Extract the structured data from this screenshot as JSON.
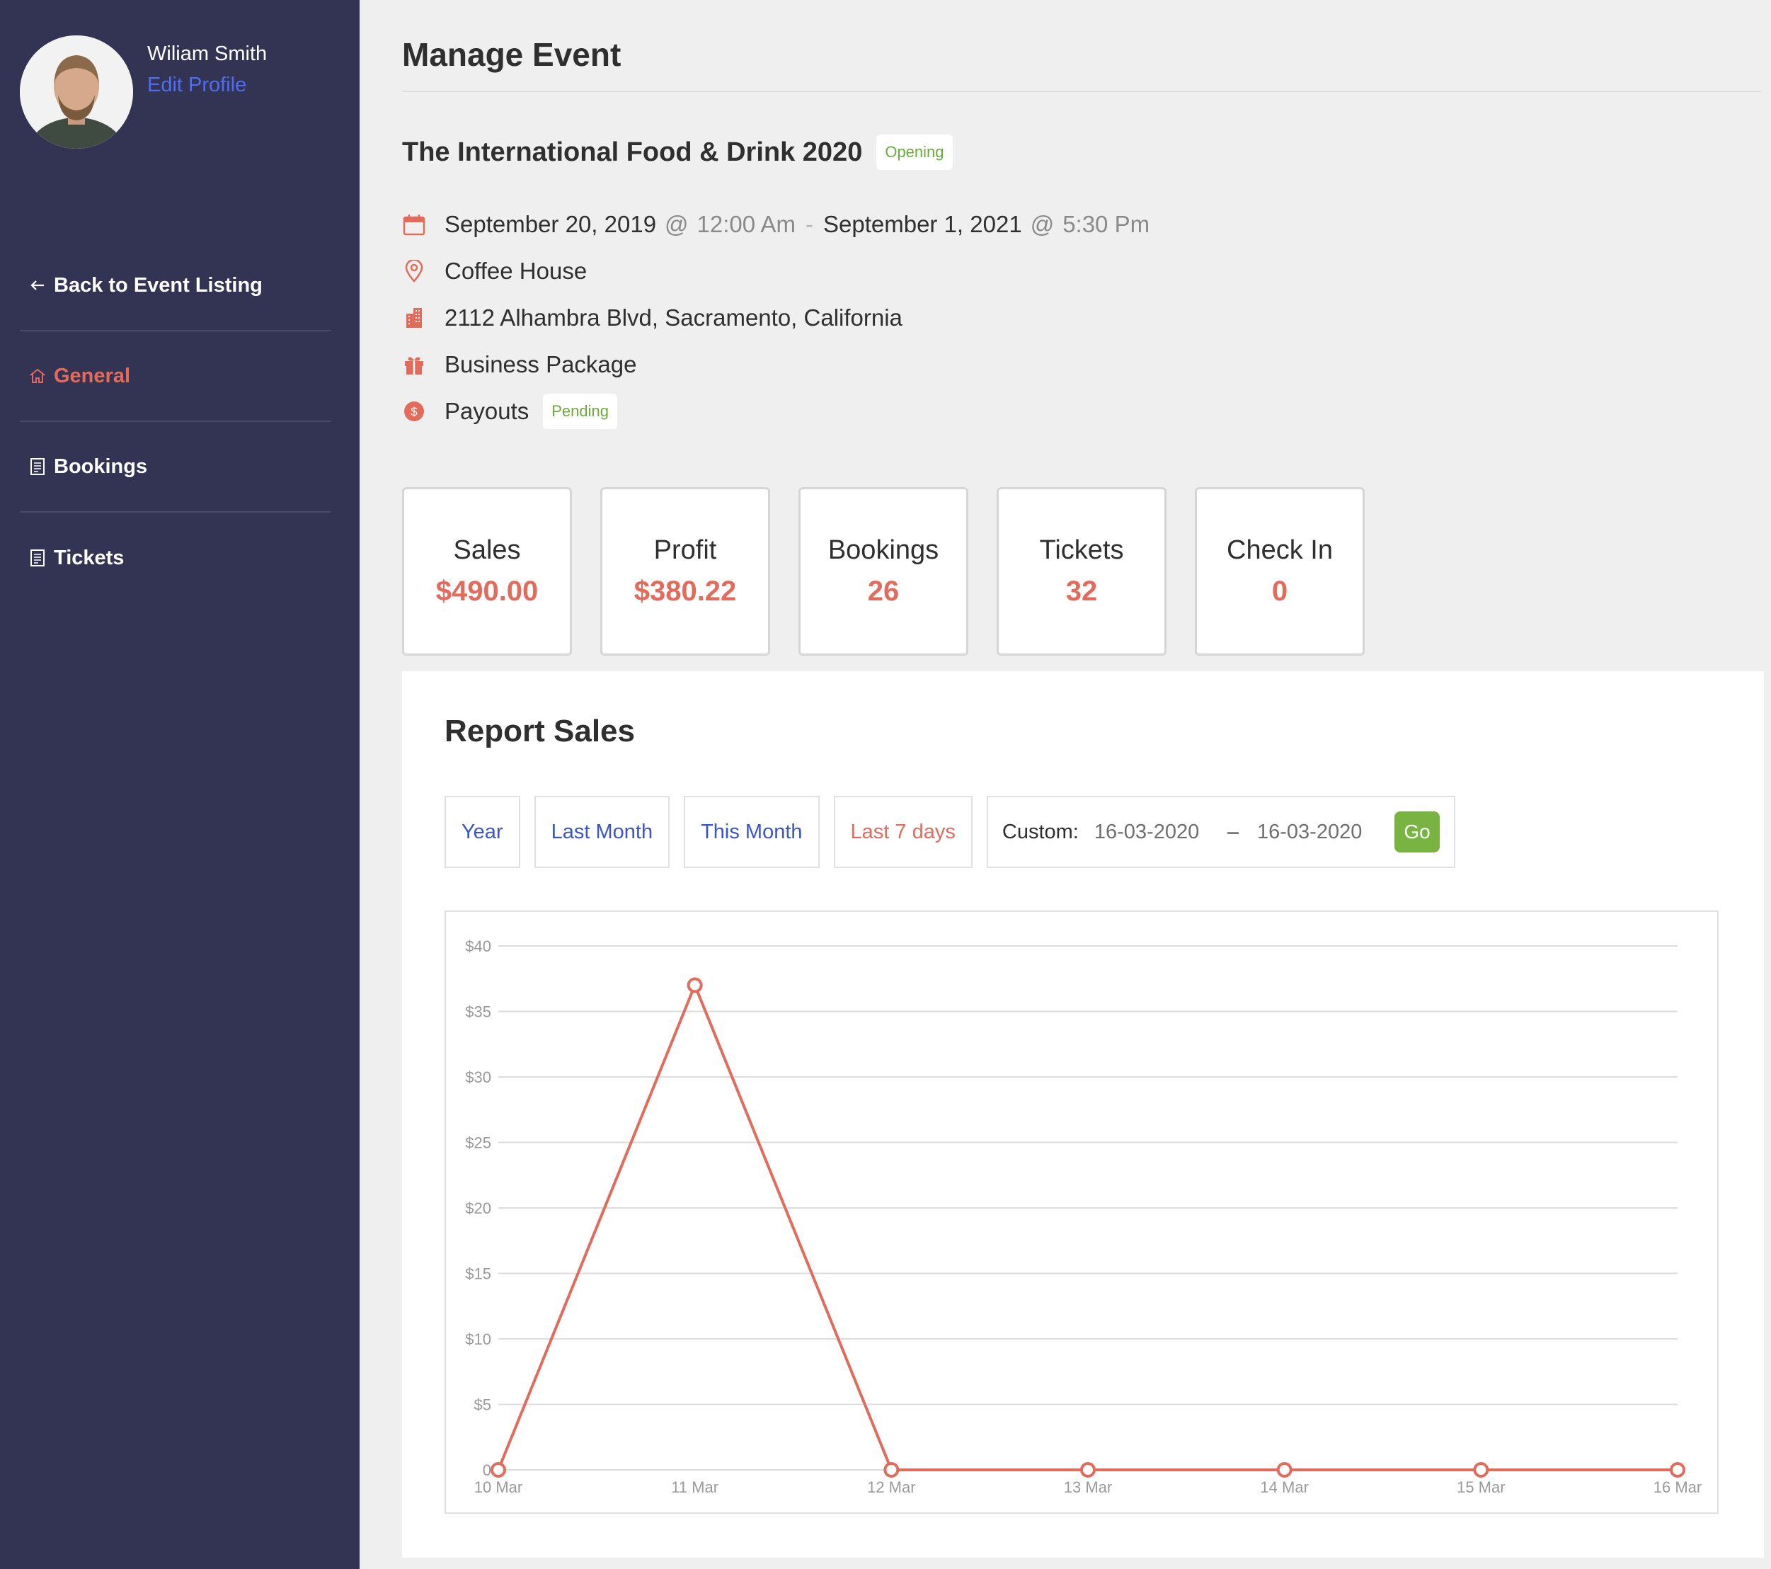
{
  "profile": {
    "name": "Wiliam Smith",
    "edit_label": "Edit Profile"
  },
  "sidebar": {
    "back_label": "Back to Event Listing",
    "items": [
      {
        "label": "General",
        "icon": "home-icon",
        "active": true
      },
      {
        "label": "Bookings",
        "icon": "document-icon",
        "active": false
      },
      {
        "label": "Tickets",
        "icon": "document-icon",
        "active": false
      }
    ]
  },
  "page": {
    "title": "Manage Event"
  },
  "event": {
    "title": "The International Food & Drink 2020",
    "status": "Opening",
    "start_date": "September 20, 2019",
    "start_time": "12:00 Am",
    "end_date": "September 1, 2021",
    "end_time": "5:30 Pm",
    "at_symbol": "@",
    "range_sep": "-",
    "venue": "Coffee House",
    "address": "2112 Alhambra Blvd, Sacramento, California",
    "package": "Business Package",
    "payouts_label": "Payouts",
    "payouts_status": "Pending"
  },
  "stats": [
    {
      "label": "Sales",
      "value": "$490.00"
    },
    {
      "label": "Profit",
      "value": "$380.22"
    },
    {
      "label": "Bookings",
      "value": "26"
    },
    {
      "label": "Tickets",
      "value": "32"
    },
    {
      "label": "Check In",
      "value": "0"
    }
  ],
  "report": {
    "title": "Report Sales",
    "filters": [
      {
        "label": "Year",
        "active": false
      },
      {
        "label": "Last Month",
        "active": false
      },
      {
        "label": "This Month",
        "active": false
      },
      {
        "label": "Last 7 days",
        "active": true
      }
    ],
    "custom_label": "Custom:",
    "date_from": "16-03-2020",
    "date_to": "16-03-2020",
    "date_sep": "–",
    "go_label": "Go"
  },
  "colors": {
    "accent": "#e26b5b",
    "sidebar_bg": "#333453",
    "link_blue": "#3b55c9",
    "success_green": "#79b443",
    "badge_green": "#6aab3c"
  },
  "chart_data": {
    "type": "line",
    "title": "",
    "xlabel": "",
    "ylabel": "",
    "categories": [
      "10 Mar",
      "11 Mar",
      "12 Mar",
      "13 Mar",
      "14 Mar",
      "15 Mar",
      "16 Mar"
    ],
    "series": [
      {
        "values": [
          0,
          37,
          0,
          0,
          0,
          0,
          0
        ]
      }
    ],
    "y_ticks": [
      "0",
      "$5",
      "$10",
      "$15",
      "$20",
      "$25",
      "$30",
      "$35",
      "$40"
    ],
    "ylim": [
      0,
      40
    ],
    "grid": true,
    "legend": "none"
  }
}
